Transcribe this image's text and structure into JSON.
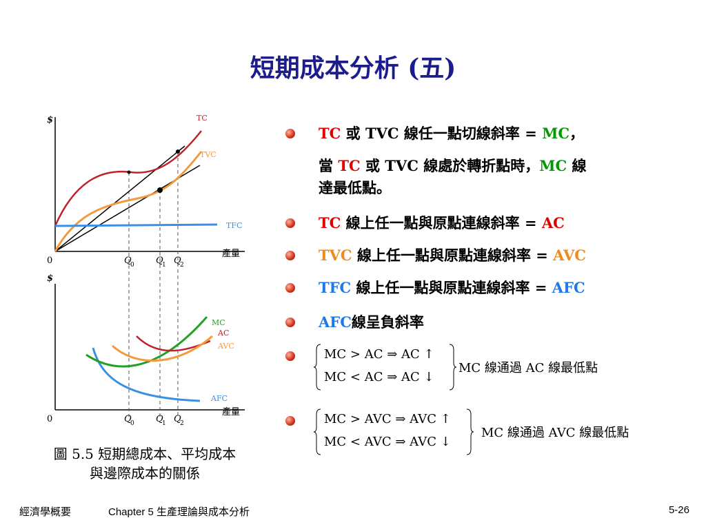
{
  "title": "短期成本分析 (五)",
  "upper_graph": {
    "y_axis": "$",
    "x_axis": "產量",
    "origin": "0",
    "curves": [
      {
        "label": "TC",
        "color": "#c0202a"
      },
      {
        "label": "TVC",
        "color": "#f39a3c"
      },
      {
        "label": "TFC",
        "color": "#3a8ee6"
      }
    ],
    "quantities": [
      {
        "letter": "Q",
        "sub": "0"
      },
      {
        "letter": "Q",
        "sub": "1"
      },
      {
        "letter": "Q",
        "sub": "2"
      }
    ]
  },
  "lower_graph": {
    "y_axis": "$",
    "x_axis": "產量",
    "origin": "0",
    "curves": [
      {
        "label": "MC",
        "color": "#22a022"
      },
      {
        "label": "AC",
        "color": "#c0202a"
      },
      {
        "label": "AVC",
        "color": "#f39a3c"
      },
      {
        "label": "AFC",
        "color": "#3a8ee6"
      }
    ],
    "quantities": [
      {
        "letter": "Q",
        "sub": "0"
      },
      {
        "letter": "Q",
        "sub": "1"
      },
      {
        "letter": "Q",
        "sub": "2"
      }
    ]
  },
  "caption": [
    "圖 5.5 短期總成本、平均成本",
    "與邊際成本的關係"
  ],
  "bullets": [
    {
      "lines": [
        [
          {
            "text": "TC",
            "color": "#e00000"
          },
          {
            "text": " 或 TVC 線任一點切線斜率 = ",
            "color": "#000000"
          },
          {
            "text": "MC",
            "color": "#009900"
          },
          {
            "text": "，",
            "color": "#000000"
          }
        ],
        [
          {
            "text": "當 ",
            "color": "#000000"
          },
          {
            "text": "TC",
            "color": "#e00000"
          },
          {
            "text": " 或 TVC 線處於轉折點時，",
            "color": "#000000"
          },
          {
            "text": "MC",
            "color": "#009900"
          },
          {
            "text": " 線",
            "color": "#000000"
          }
        ],
        [
          {
            "text": "達最低點。",
            "color": "#000000"
          }
        ]
      ]
    },
    {
      "lines": [
        [
          {
            "text": "TC",
            "color": "#e00000"
          },
          {
            "text": " 線上任一點與原點連線斜率 = ",
            "color": "#000000"
          },
          {
            "text": "AC",
            "color": "#e00000"
          }
        ]
      ]
    },
    {
      "lines": [
        [
          {
            "text": "TVC",
            "color": "#f08a1a"
          },
          {
            "text": " 線上任一點與原點連線斜率 = ",
            "color": "#000000"
          },
          {
            "text": "AVC",
            "color": "#f08a1a"
          }
        ]
      ]
    },
    {
      "lines": [
        [
          {
            "text": "TFC",
            "color": "#1e78e6"
          },
          {
            "text": " 線上任一點與原點連線斜率 = ",
            "color": "#000000"
          },
          {
            "text": "AFC",
            "color": "#1e78e6"
          }
        ]
      ]
    },
    {
      "lines": [
        [
          {
            "text": "AFC",
            "color": "#1e78e6"
          },
          {
            "text": "線呈負斜率",
            "color": "#000000"
          }
        ]
      ]
    }
  ],
  "formulas": [
    {
      "rows": [
        "MC > AC ⇒ AC ↑",
        "MC < AC ⇒ AC ↓"
      ],
      "conclusion": "MC 線通過 AC 線最低點"
    },
    {
      "rows": [
        "MC > AVC ⇒ AVC ↑",
        "MC < AVC ⇒ AVC ↓"
      ],
      "conclusion": "MC 線通過 AVC 線最低點"
    }
  ],
  "footer": {
    "book": "經濟學概要",
    "chapter": "Chapter 5 生產理論與成本分析",
    "page": "5-26"
  }
}
